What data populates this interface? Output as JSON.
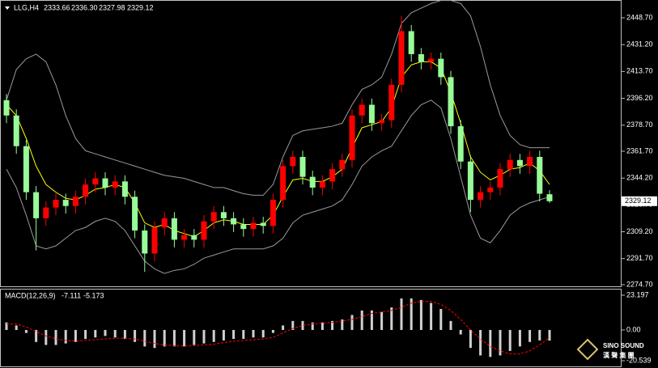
{
  "chart_data": [
    {
      "type": "candlestick",
      "title": "LLG,H4",
      "readout_labels": [
        "2333.66",
        "2336.30",
        "2327.98",
        "2329.12"
      ],
      "last_price": {
        "value": 2329.12,
        "label": "2329.12"
      },
      "up_color": "#ff0000",
      "down_color": "#98fb98",
      "open": [
        2395,
        2385,
        2365,
        2335,
        2318,
        2325,
        2330,
        2326,
        2332,
        2340,
        2344,
        2338,
        2342,
        2332,
        2310,
        2295,
        2312,
        2318,
        2304,
        2307,
        2304,
        2316,
        2322,
        2318,
        2314,
        2311,
        2315,
        2313,
        2330,
        2352,
        2358,
        2345,
        2338,
        2342,
        2350,
        2356,
        2385,
        2392,
        2380,
        2382,
        2405,
        2440,
        2425,
        2420,
        2422,
        2410,
        2378,
        2355,
        2330,
        2335,
        2338,
        2350,
        2356,
        2352,
        2358,
        2333.66
      ],
      "high": [
        2399,
        2389,
        2369,
        2339,
        2329,
        2334,
        2334,
        2336,
        2344,
        2348,
        2348,
        2346,
        2346,
        2336,
        2314,
        2316,
        2322,
        2322,
        2311,
        2311,
        2320,
        2326,
        2326,
        2322,
        2318,
        2319,
        2319,
        2334,
        2356,
        2362,
        2362,
        2349,
        2346,
        2354,
        2360,
        2389,
        2396,
        2396,
        2386,
        2409,
        2450,
        2444,
        2429,
        2426,
        2426,
        2414,
        2382,
        2359,
        2339,
        2342,
        2354,
        2360,
        2360,
        2362,
        2362,
        2336.3
      ],
      "low": [
        2380,
        2360,
        2330,
        2297,
        2313,
        2320,
        2321,
        2321,
        2327,
        2335,
        2333,
        2333,
        2327,
        2305,
        2283,
        2290,
        2307,
        2299,
        2299,
        2299,
        2299,
        2311,
        2313,
        2309,
        2306,
        2306,
        2308,
        2308,
        2325,
        2347,
        2340,
        2333,
        2333,
        2337,
        2345,
        2351,
        2380,
        2375,
        2375,
        2377,
        2400,
        2420,
        2415,
        2415,
        2405,
        2373,
        2350,
        2322,
        2325,
        2330,
        2333,
        2345,
        2347,
        2347,
        2329,
        2327.98
      ],
      "close": [
        2385,
        2365,
        2335,
        2318,
        2325,
        2330,
        2326,
        2332,
        2340,
        2344,
        2338,
        2342,
        2332,
        2310,
        2295,
        2312,
        2318,
        2304,
        2307,
        2304,
        2316,
        2322,
        2318,
        2314,
        2311,
        2315,
        2313,
        2330,
        2352,
        2358,
        2345,
        2338,
        2342,
        2350,
        2356,
        2385,
        2392,
        2380,
        2382,
        2405,
        2440,
        2425,
        2420,
        2422,
        2410,
        2378,
        2355,
        2330,
        2335,
        2338,
        2350,
        2356,
        2352,
        2358,
        2334,
        2329.12
      ],
      "lines": [
        {
          "color": "#9a9a9a",
          "values": [
            2395,
            2415,
            2422,
            2425,
            2420,
            2405,
            2385,
            2370,
            2362,
            2360,
            2358,
            2356,
            2354,
            2352,
            2350,
            2348,
            2346,
            2345,
            2344,
            2342,
            2340,
            2338,
            2338,
            2336,
            2334,
            2333,
            2333,
            2340,
            2358,
            2372,
            2375,
            2376,
            2377,
            2378,
            2380,
            2392,
            2402,
            2405,
            2410,
            2425,
            2445,
            2452,
            2455,
            2458,
            2460,
            2460,
            2458,
            2450,
            2430,
            2405,
            2385,
            2372,
            2366,
            2364,
            2364,
            2364
          ]
        },
        {
          "color": "#9a9a9a",
          "values": [
            2350,
            2338,
            2320,
            2300,
            2298,
            2300,
            2305,
            2310,
            2312,
            2316,
            2318,
            2316,
            2310,
            2300,
            2290,
            2285,
            2282,
            2284,
            2285,
            2288,
            2292,
            2294,
            2296,
            2298,
            2298,
            2298,
            2298,
            2300,
            2305,
            2315,
            2320,
            2322,
            2324,
            2326,
            2330,
            2340,
            2352,
            2358,
            2362,
            2365,
            2375,
            2385,
            2392,
            2395,
            2390,
            2370,
            2345,
            2320,
            2305,
            2302,
            2310,
            2320,
            2325,
            2328,
            2330,
            2332
          ]
        },
        {
          "color": "#ffff00",
          "values": [
            2392,
            2385,
            2370,
            2352,
            2340,
            2335,
            2331,
            2330,
            2333,
            2337,
            2338,
            2340,
            2338,
            2328,
            2315,
            2312,
            2314,
            2310,
            2308,
            2306,
            2310,
            2315,
            2317,
            2316,
            2314,
            2314,
            2314,
            2320,
            2332,
            2343,
            2344,
            2342,
            2342,
            2345,
            2350,
            2364,
            2377,
            2379,
            2381,
            2390,
            2410,
            2418,
            2420,
            2420,
            2416,
            2400,
            2380,
            2358,
            2348,
            2343,
            2346,
            2350,
            2351,
            2354,
            2349,
            2340
          ]
        }
      ],
      "ylim": [
        2273.1,
        2460.3
      ],
      "yticks": [
        {
          "value": 2448.7,
          "label": "2448.70"
        },
        {
          "value": 2431.2,
          "label": "2431.20"
        },
        {
          "value": 2413.7,
          "label": "2413.70"
        },
        {
          "value": 2396.2,
          "label": "2396.20"
        },
        {
          "value": 2378.7,
          "label": "2378.70"
        },
        {
          "value": 2361.7,
          "label": "2361.70"
        },
        {
          "value": 2344.2,
          "label": "2344.20"
        },
        {
          "value": 2326.7,
          "label": "2326.70"
        },
        {
          "value": 2309.2,
          "label": "2309.20"
        },
        {
          "value": 2291.7,
          "label": "2291.70"
        },
        {
          "value": 2274.7,
          "label": "2274.70"
        }
      ]
    },
    {
      "type": "macd",
      "title": "MACD(12,26,9)",
      "readout": [
        -7.111,
        -5.173
      ],
      "hist_color": "#d0d0d0",
      "signal_color": "#ff0000",
      "hist": [
        5,
        3,
        -2,
        -8,
        -10,
        -10,
        -9,
        -8,
        -6,
        -5,
        -4,
        -5,
        -6,
        -8,
        -11,
        -12,
        -11,
        -11,
        -11,
        -10,
        -9,
        -8,
        -7,
        -6,
        -6,
        -5,
        -5,
        -2,
        3,
        6,
        6,
        5,
        5,
        6,
        7,
        10,
        13,
        13,
        12,
        15,
        21,
        21,
        20,
        18,
        14,
        6,
        -3,
        -12,
        -17,
        -18,
        -17,
        -14,
        -11,
        -8,
        -7,
        -7.111
      ],
      "signal": [
        4,
        4,
        2,
        -1,
        -4,
        -6,
        -7,
        -7.5,
        -7,
        -6.5,
        -6,
        -5.5,
        -5.5,
        -6,
        -7.5,
        -9,
        -10,
        -10.5,
        -10.8,
        -10.5,
        -10,
        -9.5,
        -8.5,
        -7.5,
        -7,
        -6.5,
        -6,
        -5,
        -2,
        1,
        3,
        4,
        4.5,
        5,
        6,
        7,
        9,
        11,
        12,
        13,
        15,
        18,
        19,
        19,
        17,
        13,
        7,
        0,
        -6,
        -11,
        -14,
        -16,
        -16,
        -14,
        -10,
        -5.173
      ],
      "ylim": [
        -24.3,
        27.5
      ],
      "yticks": [
        23.197,
        {
          "value": 0,
          "label": "0.00"
        },
        -20.539
      ]
    }
  ],
  "watermark": {
    "brand": "SINO SOUND",
    "chinese": "漢 聲 集 團"
  }
}
